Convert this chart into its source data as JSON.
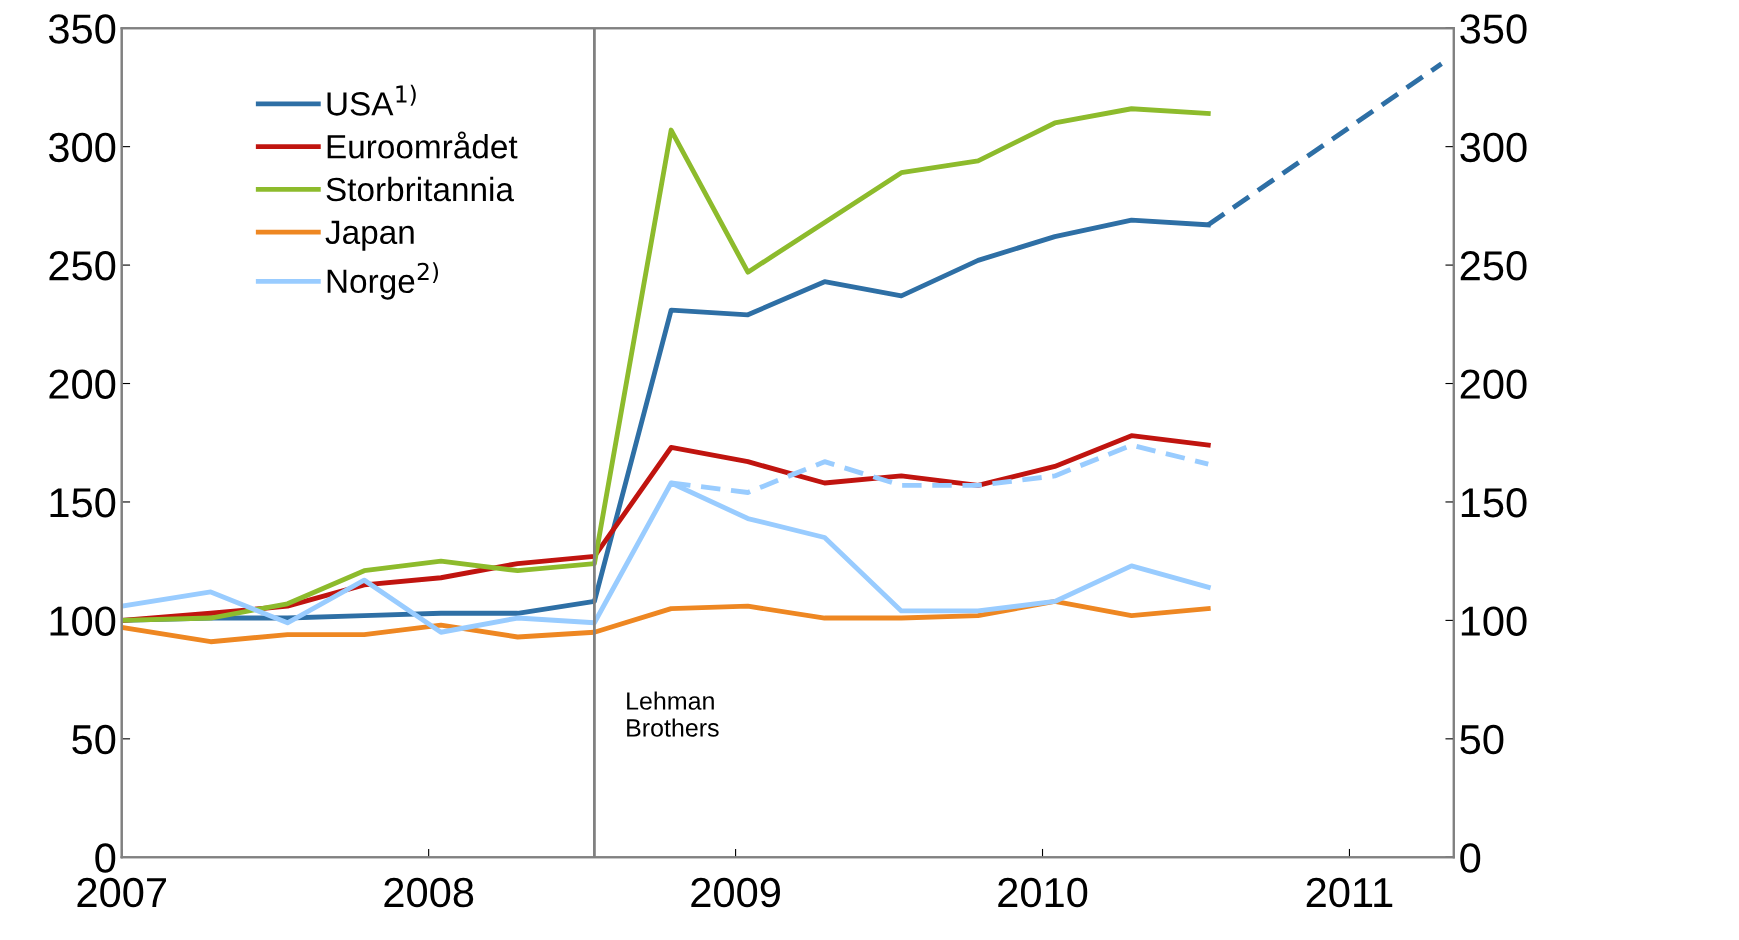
{
  "chart_data": {
    "type": "line",
    "x": [
      2007.0,
      2007.29,
      2007.54,
      2007.79,
      2008.04,
      2008.29,
      2008.54,
      2008.79,
      2009.04,
      2009.29,
      2009.54,
      2009.79,
      2010.04,
      2010.29,
      2010.54
    ],
    "series": [
      {
        "name": "USA$^{1)}$",
        "color": "#2e6fa5",
        "values": [
          100,
          101,
          101,
          102,
          103,
          103,
          108,
          231,
          229,
          243,
          237,
          252,
          262,
          269,
          267
        ]
      },
      {
        "color": "#2e6fa5",
        "line_style": "dashed",
        "x": [
          2010.54,
          2011.3
        ],
        "values": [
          267,
          335
        ]
      },
      {
        "name": "Euroområdet",
        "color": "#c0140f",
        "values": [
          100,
          103,
          106,
          115,
          118,
          124,
          127,
          173,
          167,
          158,
          161,
          157,
          165,
          178,
          174
        ]
      },
      {
        "name": "Storbritannia",
        "color": "#8dbb2c",
        "values": [
          100,
          101,
          107,
          121,
          125,
          121,
          124,
          307,
          247,
          268,
          289,
          294,
          310,
          316,
          314
        ]
      },
      {
        "name": "Japan",
        "color": "#ee8722",
        "values": [
          97,
          91,
          94,
          94,
          98,
          93,
          95,
          105,
          106,
          101,
          101,
          102,
          108,
          102,
          105
        ]
      },
      {
        "name": "Norge$^{2)}$",
        "color": "#99ccff",
        "values": [
          106,
          112,
          99,
          117,
          95,
          101,
          99,
          158,
          143,
          135,
          104,
          104,
          108,
          123,
          114
        ]
      },
      {
        "color": "#99ccff",
        "line_style": "dashed",
        "x": [
          2008.79,
          2009.04,
          2009.29,
          2009.54,
          2009.79,
          2010.04,
          2010.29,
          2010.54
        ],
        "values": [
          158,
          154,
          167,
          157,
          157,
          161,
          174,
          166
        ]
      }
    ],
    "xlim": [
      2007.0,
      2011.34
    ],
    "xticks": [
      2007,
      2008,
      2009,
      2010,
      2011
    ],
    "ylim": [
      0,
      350
    ],
    "yticks": [
      0,
      50,
      100,
      150,
      200,
      250,
      300,
      350
    ],
    "y2lim": [
      0,
      350
    ],
    "y2ticks": [
      0,
      50,
      100,
      150,
      200,
      250,
      300,
      350
    ],
    "ref_lines": [
      {
        "axis": "x",
        "value": 2008.54,
        "label": "Lehman\nBrothers",
        "color": "#808080",
        "line_style": "solid"
      }
    ],
    "grid": false,
    "legend": "top left",
    "line_style": "solid",
    "marker": "none"
  }
}
